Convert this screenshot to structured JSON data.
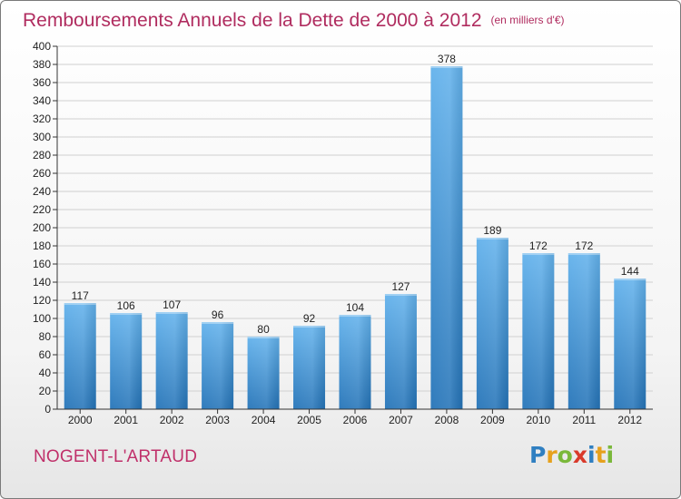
{
  "title": {
    "main": "Remboursements Annuels de la Dette de 2000 à 2012",
    "unit": "(en milliers d'€)"
  },
  "commune": "NOGENT-L'ARTAUD",
  "logo": {
    "text": "Proxiti",
    "letters": [
      {
        "char": "P",
        "color": "#2f7fc1"
      },
      {
        "char": "r",
        "color": "#e6a11d"
      },
      {
        "char": "o",
        "color": "#7ab83a"
      },
      {
        "char": "x",
        "color": "#d93a2b"
      },
      {
        "char": "i",
        "color": "#2f7fc1"
      },
      {
        "char": "t",
        "color": "#e6a11d"
      },
      {
        "char": "i",
        "color": "#7ab83a"
      }
    ]
  },
  "colors": {
    "bar_light": "#63b2ec",
    "bar_dark": "#2574b8",
    "grid": "#d0d0d0",
    "axis": "#333333",
    "title": "#b02c5f"
  },
  "chart_data": {
    "type": "bar",
    "categories": [
      "2000",
      "2001",
      "2002",
      "2003",
      "2004",
      "2005",
      "2006",
      "2007",
      "2008",
      "2009",
      "2010",
      "2011",
      "2012"
    ],
    "values": [
      117,
      106,
      107,
      96,
      80,
      92,
      104,
      127,
      378,
      189,
      172,
      172,
      144
    ],
    "ylim": [
      0,
      400
    ],
    "yticks": [
      0,
      20,
      40,
      60,
      80,
      100,
      120,
      140,
      160,
      180,
      200,
      220,
      240,
      260,
      280,
      300,
      320,
      340,
      360,
      380,
      400
    ],
    "grid": true,
    "data_labels": true,
    "title": "Remboursements Annuels de la Dette de 2000 à 2012",
    "xlabel": "",
    "ylabel": ""
  }
}
